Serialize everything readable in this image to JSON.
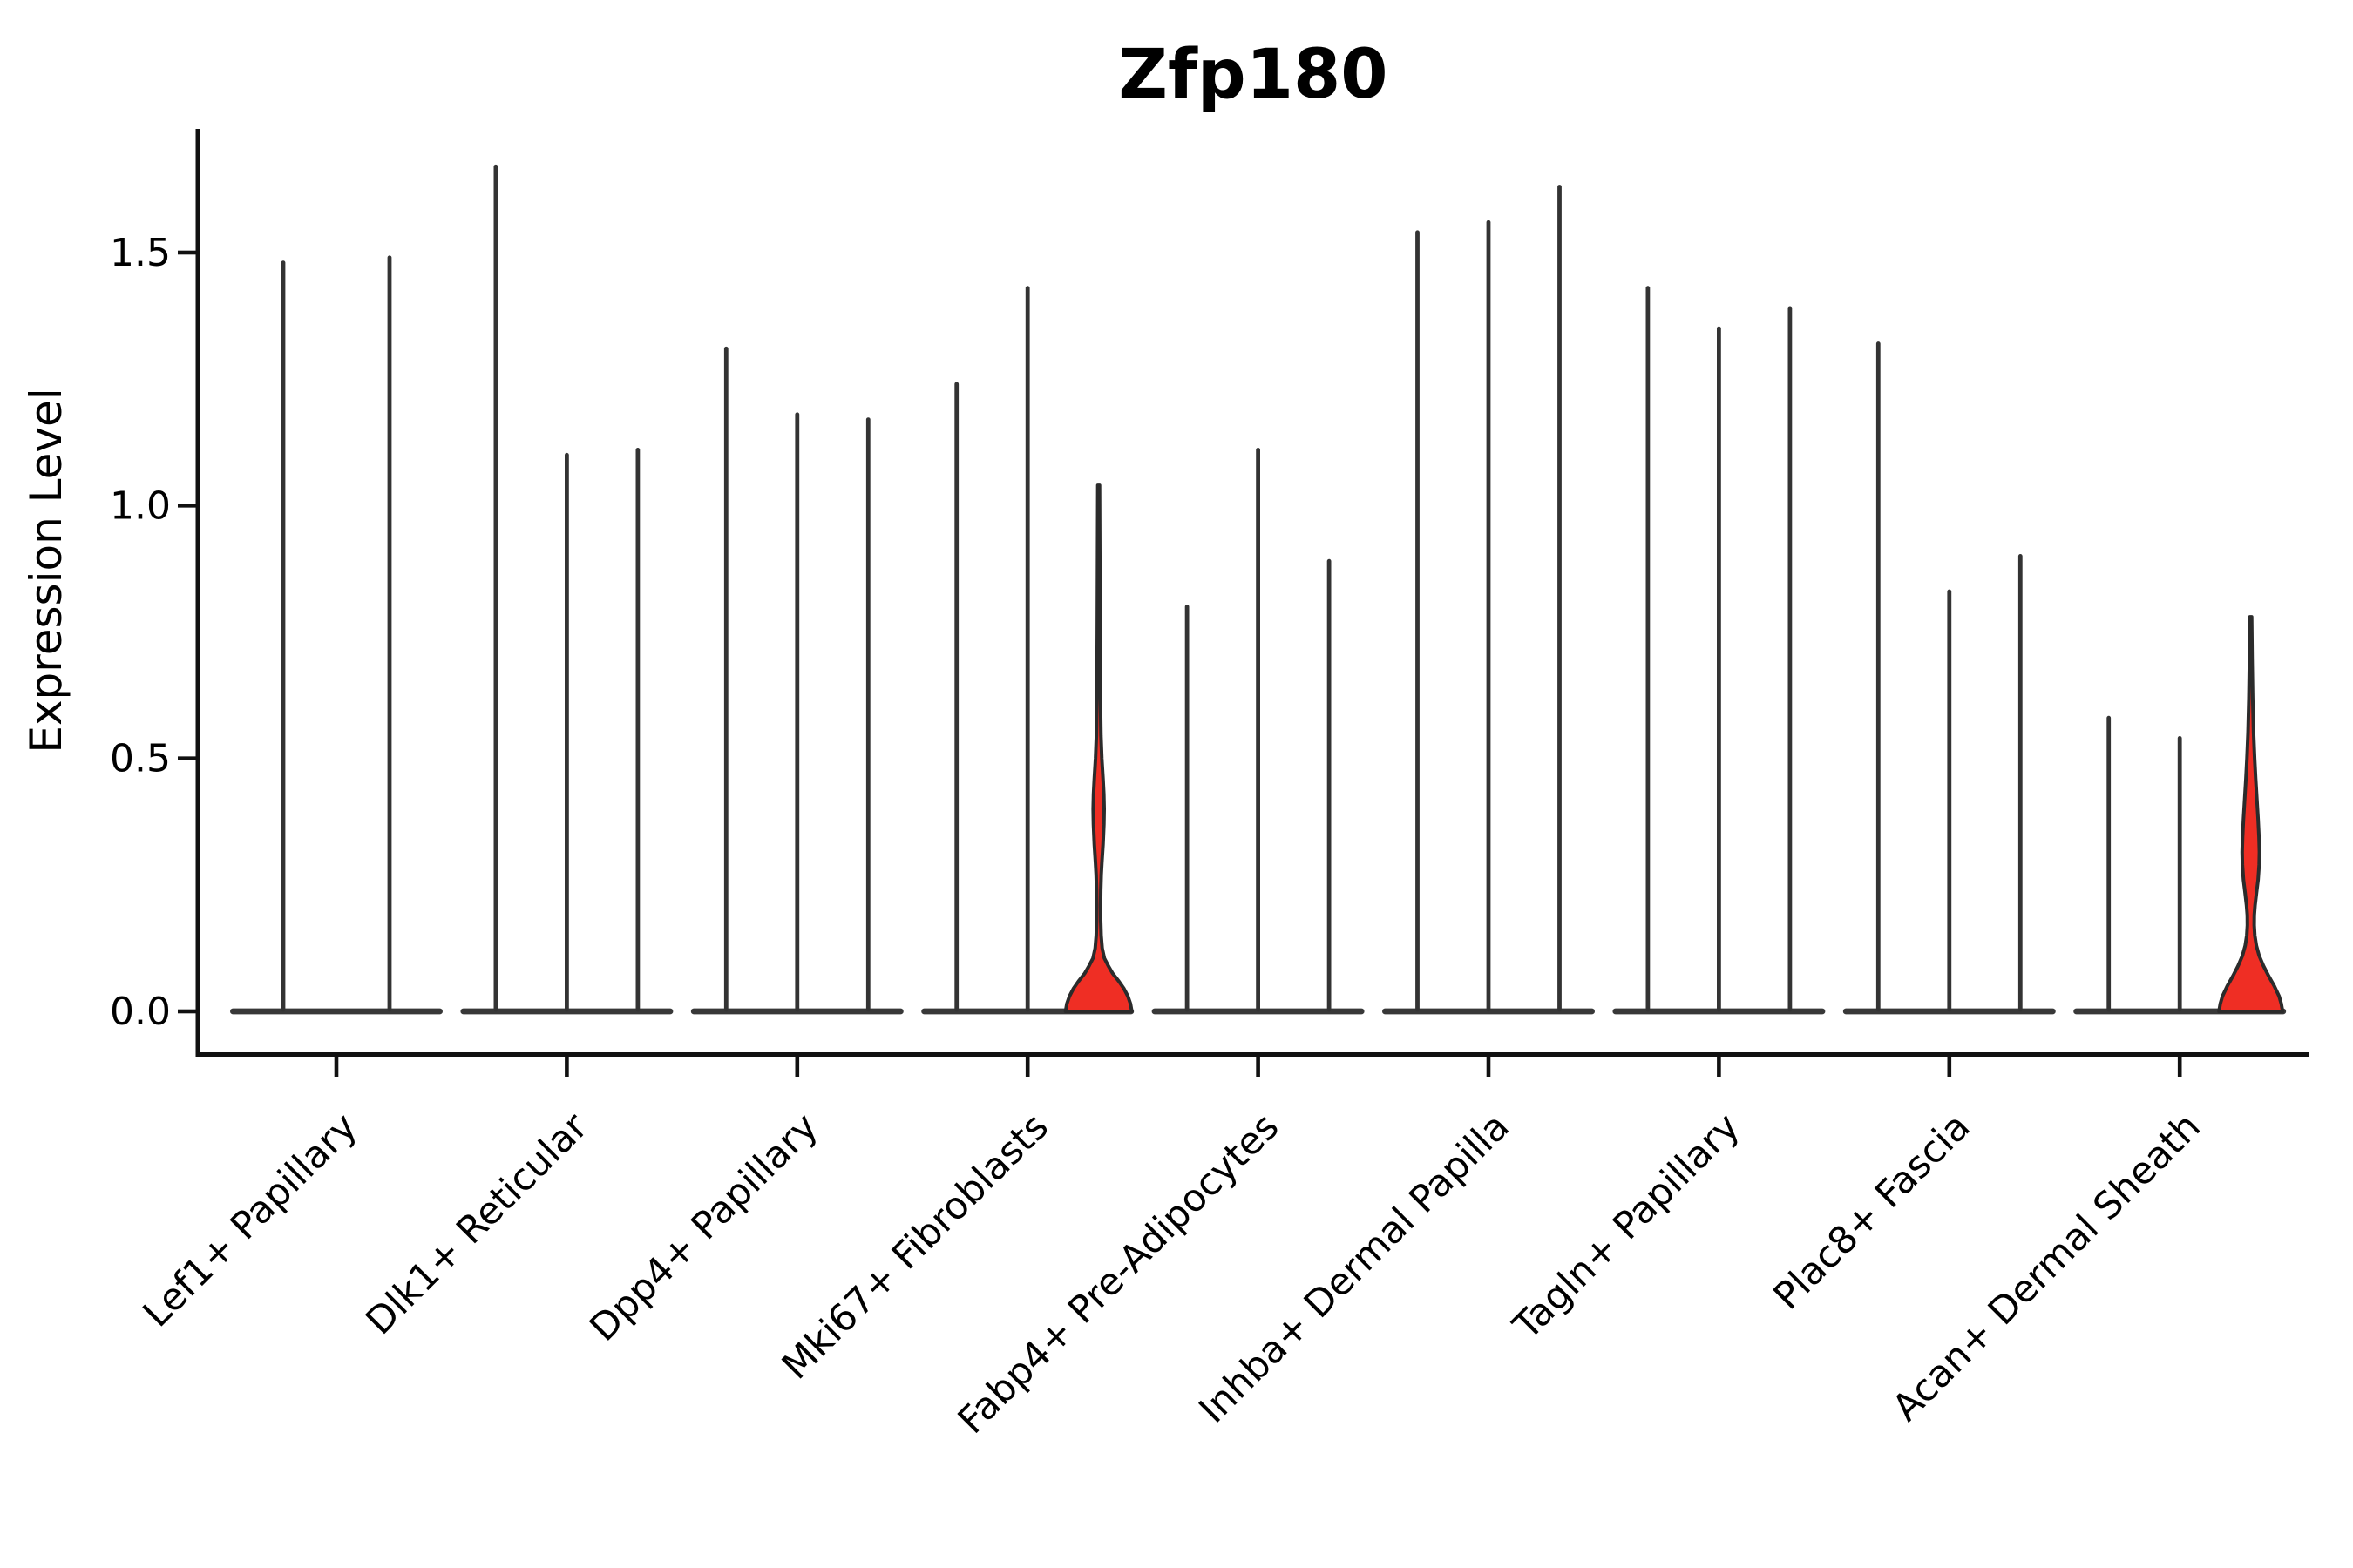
{
  "title": "Zfp180",
  "ylabel": "Expression Level",
  "chart_data": {
    "type": "violin",
    "title": "Zfp180",
    "xlabel": "",
    "ylabel": "Expression Level",
    "grid": false,
    "legend": "none",
    "ylim": [
      -0.08,
      1.74
    ],
    "ytick_labels": [
      "0.0",
      "0.5",
      "1.0",
      "1.5"
    ],
    "ytick_values": [
      0.0,
      0.5,
      1.0,
      1.5
    ],
    "categories": [
      "Lef1+ Papillary",
      "Dlk1+ Reticular",
      "Dpp4+ Papillary",
      "Mki67+ Fibroblasts",
      "Fabp4+ Pre-Adipocytes",
      "Inhba+ Dermal Papilla",
      "Tagln+ Papillary",
      "Plac8+ Fascia",
      "Acan+ Dermal Sheath"
    ],
    "groups": [
      {
        "category": "Lef1+ Papillary",
        "violins": [
          {
            "max": 1.48,
            "filled": false
          },
          {
            "max": 1.49,
            "filled": false
          }
        ]
      },
      {
        "category": "Dlk1+ Reticular",
        "violins": [
          {
            "max": 1.67,
            "filled": false
          },
          {
            "max": 1.1,
            "filled": false
          },
          {
            "max": 1.11,
            "filled": false
          }
        ]
      },
      {
        "category": "Dpp4+ Papillary",
        "violins": [
          {
            "max": 1.31,
            "filled": false
          },
          {
            "max": 1.18,
            "filled": false
          },
          {
            "max": 1.17,
            "filled": false
          }
        ]
      },
      {
        "category": "Mki67+ Fibroblasts",
        "violins": [
          {
            "max": 1.24,
            "filled": false
          },
          {
            "max": 1.43,
            "filled": false
          },
          {
            "max": 1.04,
            "filled": true,
            "fill": "#EF2E24",
            "profile": [
              [
                1.04,
                1.0
              ],
              [
                0.9,
                1.3
              ],
              [
                0.75,
                1.6
              ],
              [
                0.62,
                2.0
              ],
              [
                0.545,
                2.6
              ],
              [
                0.5,
                3.6
              ],
              [
                0.46,
                5.0
              ],
              [
                0.43,
                5.9
              ],
              [
                0.4,
                6.3
              ],
              [
                0.37,
                6.0
              ],
              [
                0.33,
                5.0
              ],
              [
                0.295,
                3.7
              ],
              [
                0.27,
                2.9
              ],
              [
                0.24,
                2.4
              ],
              [
                0.21,
                2.2
              ],
              [
                0.18,
                2.3
              ],
              [
                0.15,
                2.8
              ],
              [
                0.125,
                4.0
              ],
              [
                0.105,
                6.5
              ],
              [
                0.09,
                11
              ],
              [
                0.075,
                16
              ],
              [
                0.06,
                23
              ],
              [
                0.045,
                29
              ],
              [
                0.03,
                33.5
              ],
              [
                0.015,
                36.5
              ],
              [
                0.0,
                38
              ]
            ]
          }
        ]
      },
      {
        "category": "Fabp4+ Pre-Adipocytes",
        "violins": [
          {
            "max": 0.8,
            "filled": false
          },
          {
            "max": 1.11,
            "filled": false
          },
          {
            "max": 0.89,
            "filled": false
          }
        ]
      },
      {
        "category": "Inhba+ Dermal Papilla",
        "violins": [
          {
            "max": 1.54,
            "filled": false
          },
          {
            "max": 1.56,
            "filled": false
          },
          {
            "max": 1.63,
            "filled": false
          }
        ]
      },
      {
        "category": "Tagln+ Papillary",
        "violins": [
          {
            "max": 1.43,
            "filled": false
          },
          {
            "max": 1.35,
            "filled": false
          },
          {
            "max": 1.39,
            "filled": false
          }
        ]
      },
      {
        "category": "Plac8+ Fascia",
        "violins": [
          {
            "max": 1.32,
            "filled": false
          },
          {
            "max": 0.83,
            "filled": false
          },
          {
            "max": 0.9,
            "filled": false
          }
        ]
      },
      {
        "category": "Acan+ Dermal Sheath",
        "violins": [
          {
            "max": 0.58,
            "filled": false
          },
          {
            "max": 0.54,
            "filled": false
          },
          {
            "max": 0.78,
            "filled": true,
            "fill": "#EF2E24",
            "profile": [
              [
                0.78,
                1.0
              ],
              [
                0.7,
                1.5
              ],
              [
                0.62,
                2.2
              ],
              [
                0.55,
                3.2
              ],
              [
                0.5,
                4.4
              ],
              [
                0.46,
                5.6
              ],
              [
                0.42,
                7.0
              ],
              [
                0.38,
                8.4
              ],
              [
                0.345,
                9.4
              ],
              [
                0.315,
                9.9
              ],
              [
                0.29,
                9.6
              ],
              [
                0.26,
                8.4
              ],
              [
                0.235,
                6.6
              ],
              [
                0.21,
                4.9
              ],
              [
                0.19,
                4.0
              ],
              [
                0.17,
                3.9
              ],
              [
                0.15,
                4.6
              ],
              [
                0.13,
                6.4
              ],
              [
                0.11,
                9.6
              ],
              [
                0.09,
                14.5
              ],
              [
                0.07,
                20.5
              ],
              [
                0.05,
                27
              ],
              [
                0.03,
                32.5
              ],
              [
                0.015,
                35
              ],
              [
                0.0,
                36.5
              ]
            ]
          }
        ]
      }
    ],
    "colors": {
      "violin_line": "#333333",
      "violin_base_bar": "#383838",
      "highlight_fill": "#EF2E24",
      "highlight_outline": "#2b2b2b",
      "spine": "#111111",
      "text": "#000000"
    }
  }
}
